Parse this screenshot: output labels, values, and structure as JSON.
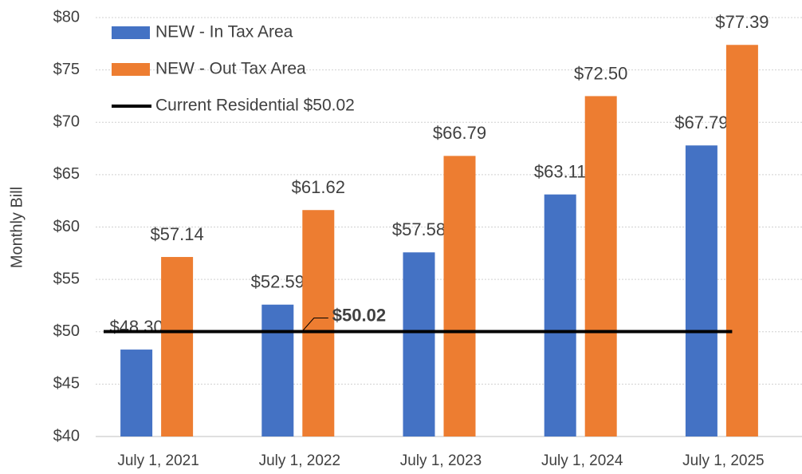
{
  "chart_data": {
    "type": "bar",
    "y_label": "Monthly Bill",
    "categories": [
      "July 1, 2021",
      "July 1, 2022",
      "July 1, 2023",
      "July 1, 2024",
      "July 1, 2025"
    ],
    "series": [
      {
        "name": "NEW - In Tax Area",
        "color": "#4472c4",
        "values": [
          48.3,
          52.59,
          57.58,
          63.11,
          67.79
        ],
        "value_labels": [
          "$48.30",
          "$52.59",
          "$57.58",
          "$63.11",
          "$67.79"
        ]
      },
      {
        "name": "NEW - Out Tax Area",
        "color": "#ed7d31",
        "values": [
          57.14,
          61.62,
          66.79,
          72.5,
          77.39
        ],
        "value_labels": [
          "$57.14",
          "$61.62",
          "$66.79",
          "$72.50",
          "$77.39"
        ]
      },
      {
        "name": "Current Residential $50.02",
        "type": "line",
        "color": "#000000",
        "values": [
          50.02,
          50.02,
          50.02,
          50.02,
          50.02
        ],
        "value_labels": [
          null,
          "$50.02",
          null,
          null,
          null
        ]
      }
    ],
    "ylim": [
      40,
      80
    ],
    "yticks": [
      {
        "value": 40,
        "label": "$40"
      },
      {
        "value": 45,
        "label": "$45"
      },
      {
        "value": 50,
        "label": "$50"
      },
      {
        "value": 55,
        "label": "$55"
      },
      {
        "value": 60,
        "label": "$60"
      },
      {
        "value": 65,
        "label": "$65"
      },
      {
        "value": 70,
        "label": "$70"
      },
      {
        "value": 75,
        "label": "$75"
      },
      {
        "value": 80,
        "label": "$80"
      }
    ],
    "grid": true,
    "legend": "top-left"
  }
}
